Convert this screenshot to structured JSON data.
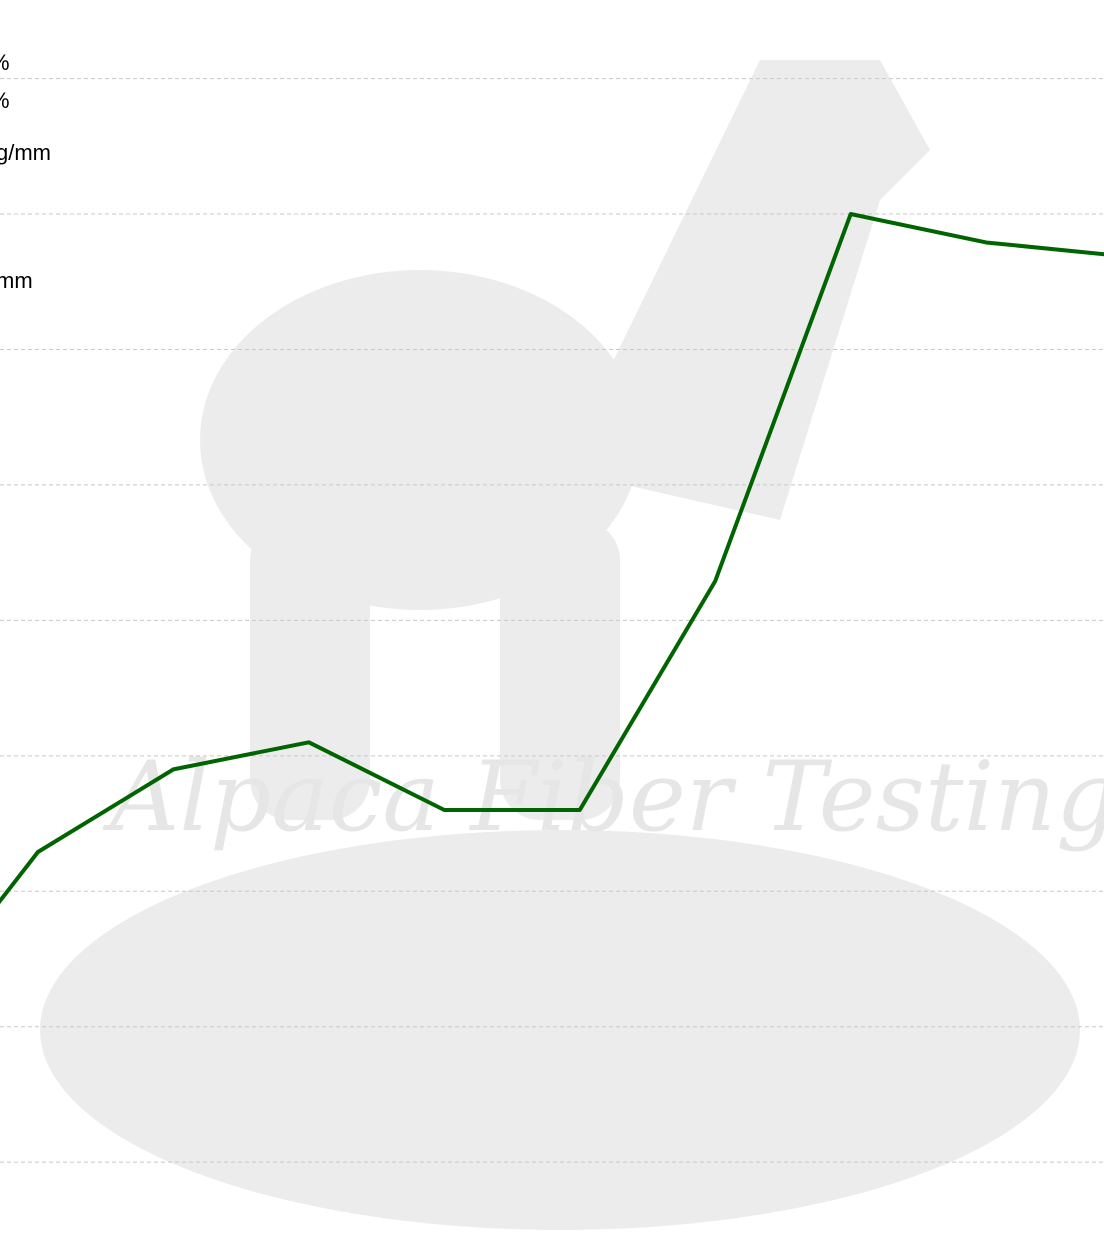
{
  "chart_data": {
    "type": "line",
    "labels": [
      "%",
      "%",
      "g/mm",
      "mm"
    ],
    "watermark": "Alpaca Fiber Testing",
    "x": [
      0,
      1,
      2,
      3,
      4,
      5,
      6,
      7,
      8,
      9
    ],
    "xlim": [
      0.72,
      8.87
    ],
    "series": [
      {
        "color": "#006400",
        "values": [
          1.0,
          2.29,
          2.9,
          3.1,
          2.6,
          2.6,
          4.29,
          7.0,
          6.79,
          6.69
        ]
      }
    ],
    "ylim": [
      -0.7,
      8.58
    ],
    "yticks": [
      0,
      1,
      2,
      3,
      4,
      5,
      6,
      7,
      8
    ],
    "grid": true
  }
}
